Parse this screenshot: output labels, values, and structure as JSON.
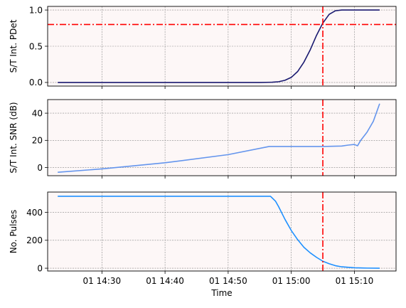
{
  "chart_data": [
    {
      "type": "line",
      "ylabel": "S/T Int. PDet",
      "ylim": [
        -0.05,
        1.05
      ],
      "yticks": [
        0,
        0.5,
        1.0
      ],
      "ytick_labels": [
        "0.0",
        "0.5",
        "1.0"
      ],
      "grid": true,
      "series": [
        {
          "color": "#191970",
          "x": [
            "14:23",
            "14:50",
            "14:55",
            "14:57",
            "14:58",
            "14:59",
            "15:00",
            "15:01",
            "15:02",
            "15:03",
            "15:04",
            "15:05",
            "15:06",
            "15:07",
            "15:08",
            "15:09",
            "15:10",
            "15:14"
          ],
          "y": [
            0.0,
            0.0,
            0.0,
            0.003,
            0.01,
            0.03,
            0.07,
            0.15,
            0.28,
            0.45,
            0.65,
            0.82,
            0.94,
            0.99,
            1.0,
            1.0,
            1.0,
            1.0
          ]
        }
      ],
      "hline": {
        "y": 0.8,
        "color": "#ff0000",
        "style": "dash-dot"
      },
      "vline": {
        "x": "15:05",
        "color": "#ff0000",
        "style": "dash-dot"
      }
    },
    {
      "type": "line",
      "ylabel": "S/T Int. SNR (dB)",
      "ylim": [
        -6,
        50
      ],
      "yticks": [
        0,
        20,
        40
      ],
      "ytick_labels": [
        "0",
        "20",
        "40"
      ],
      "grid": true,
      "series": [
        {
          "color": "#6495ed",
          "x": [
            "14:23",
            "14:30",
            "14:40",
            "14:50",
            "14:56.5",
            "15:00",
            "15:05",
            "15:08",
            "15:09",
            "15:10",
            "15:10.5",
            "15:11",
            "15:12",
            "15:13",
            "15:14"
          ],
          "y": [
            -3.5,
            -1,
            3.5,
            9.5,
            15.5,
            15.5,
            15.5,
            15.8,
            16.5,
            17,
            16,
            20,
            26,
            34,
            47
          ]
        }
      ],
      "vline": {
        "x": "15:05",
        "color": "#ff0000",
        "style": "dash-dot"
      }
    },
    {
      "type": "line",
      "ylabel": "No. Pulses",
      "xlabel": "Time",
      "ylim": [
        -20,
        545
      ],
      "yticks": [
        0,
        200,
        400
      ],
      "ytick_labels": [
        "0",
        "200",
        "400"
      ],
      "xticks": [
        "14:30",
        "14:40",
        "14:50",
        "15:00",
        "15:10"
      ],
      "xtick_labels": [
        "01 14:30",
        "01 14:40",
        "01 14:50",
        "01 15:00",
        "01 15:10"
      ],
      "grid": true,
      "series": [
        {
          "color": "#1e90ff",
          "x": [
            "14:23",
            "14:50",
            "14:56.7",
            "14:57.5",
            "14:58",
            "14:59",
            "15:00",
            "15:01",
            "15:02",
            "15:03",
            "15:04",
            "15:05",
            "15:06",
            "15:07",
            "15:08",
            "15:10",
            "15:12",
            "15:14"
          ],
          "y": [
            515,
            515,
            515,
            480,
            440,
            350,
            270,
            205,
            150,
            110,
            78,
            50,
            32,
            18,
            10,
            3,
            1,
            0
          ]
        }
      ],
      "vline": {
        "x": "15:05",
        "color": "#ff0000",
        "style": "dash-dot"
      }
    }
  ],
  "colors": {
    "plot_background": "#fdf7f7",
    "grid": "#888888",
    "marker_line": "#ff0000"
  }
}
